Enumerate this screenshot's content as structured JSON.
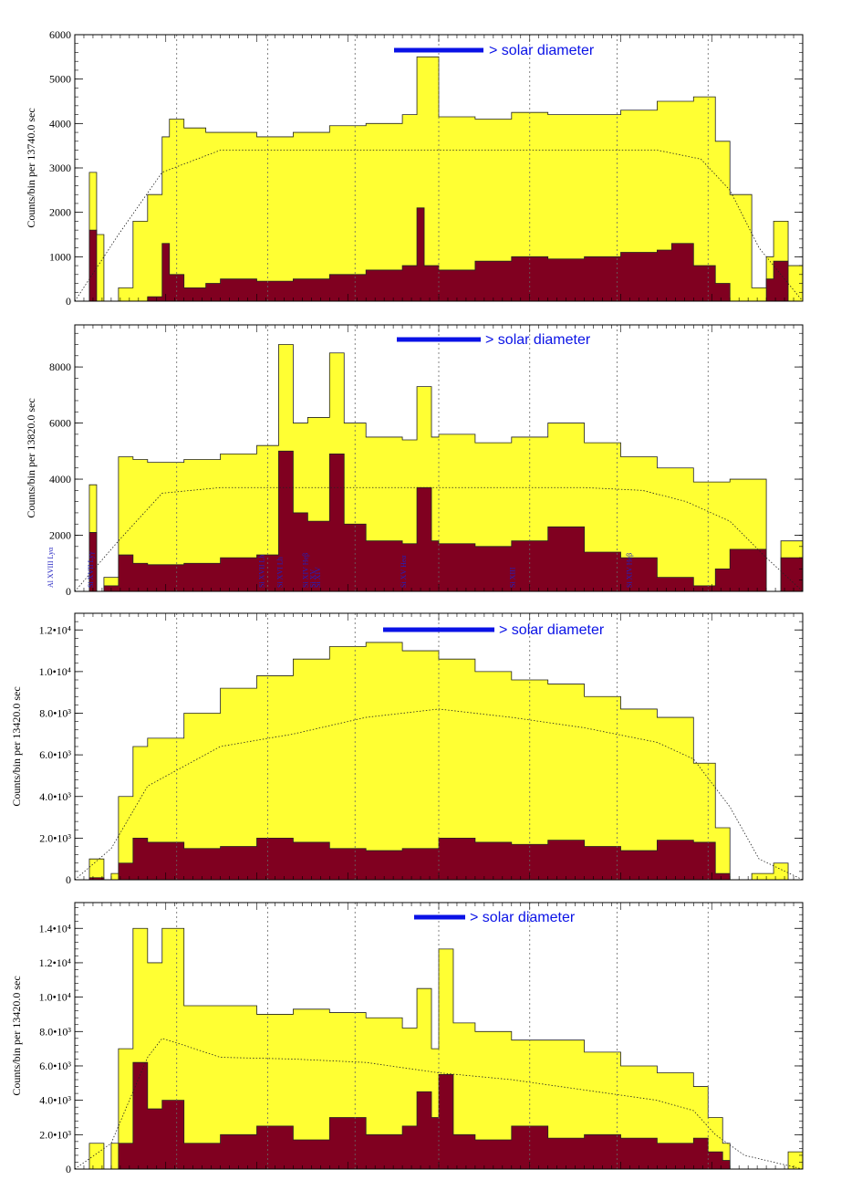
{
  "chart_data": [
    {
      "type": "area",
      "ylabel": "Counts/bin per  13740.0 sec",
      "ylim": [
        0,
        6000
      ],
      "yticks": [
        0,
        1000,
        2000,
        3000,
        4000,
        5000,
        6000
      ],
      "ytick_labels": [
        "0",
        "1000",
        "2000",
        "3000",
        "4000",
        "5000",
        "6000"
      ],
      "annotation": "> solar diameter",
      "series": [
        {
          "color": "#ffff33",
          "x": [
            0,
            0.02,
            0.03,
            0.04,
            0.06,
            0.08,
            0.1,
            0.12,
            0.13,
            0.15,
            0.18,
            0.2,
            0.25,
            0.3,
            0.35,
            0.4,
            0.45,
            0.47,
            0.5,
            0.55,
            0.6,
            0.65,
            0.7,
            0.75,
            0.8,
            0.85,
            0.88,
            0.9,
            0.93,
            0.95,
            0.96,
            0.98,
            1
          ],
          "values": [
            0,
            2900,
            1500,
            0,
            300,
            1800,
            2400,
            3700,
            4100,
            3900,
            3800,
            3800,
            3700,
            3800,
            3950,
            4000,
            4200,
            5500,
            4150,
            4100,
            4250,
            4200,
            4200,
            4300,
            4500,
            4600,
            3600,
            2400,
            300,
            1000,
            1800,
            800,
            0
          ]
        },
        {
          "color": "#800020",
          "x": [
            0,
            0.02,
            0.03,
            0.04,
            0.06,
            0.08,
            0.1,
            0.12,
            0.13,
            0.15,
            0.18,
            0.2,
            0.25,
            0.3,
            0.35,
            0.4,
            0.45,
            0.47,
            0.48,
            0.5,
            0.55,
            0.6,
            0.65,
            0.7,
            0.75,
            0.8,
            0.82,
            0.85,
            0.88,
            0.9,
            0.93,
            0.95,
            0.96,
            0.98,
            1
          ],
          "values": [
            0,
            1600,
            0,
            0,
            0,
            0,
            100,
            1300,
            600,
            300,
            400,
            500,
            450,
            500,
            600,
            700,
            800,
            2100,
            800,
            700,
            900,
            1000,
            950,
            1000,
            1100,
            1150,
            1300,
            800,
            400,
            0,
            0,
            500,
            900,
            0,
            0
          ]
        }
      ],
      "dotted_curve": {
        "x": [
          0,
          0.06,
          0.12,
          0.2,
          0.3,
          0.4,
          0.5,
          0.6,
          0.7,
          0.8,
          0.86,
          0.9,
          0.94,
          1
        ],
        "values": [
          0,
          1500,
          2900,
          3400,
          3400,
          3400,
          3400,
          3400,
          3400,
          3400,
          3200,
          2500,
          1200,
          0
        ]
      }
    },
    {
      "type": "area",
      "ylabel": "Counts/bin per  13820.0 sec",
      "ylim": [
        0,
        9500
      ],
      "yticks": [
        0,
        2000,
        4000,
        6000,
        8000
      ],
      "ytick_labels": [
        "0",
        "2000",
        "4000",
        "6000",
        "8000"
      ],
      "annotation": "> solar diameter",
      "line_labels": [
        "Al XVIII Lyα",
        "Si XVII Lyγ",
        "Si XVII Lh",
        "Si XVI Lh",
        "Si XIV Heβ",
        "Si XV",
        "Si XIV",
        "Si XV Heα",
        "Si XIII",
        "Si XIV Heβ"
      ],
      "series": [
        {
          "color": "#ffff33",
          "x": [
            0,
            0.02,
            0.03,
            0.04,
            0.06,
            0.08,
            0.1,
            0.15,
            0.2,
            0.25,
            0.28,
            0.3,
            0.32,
            0.35,
            0.37,
            0.4,
            0.45,
            0.47,
            0.49,
            0.5,
            0.55,
            0.6,
            0.65,
            0.7,
            0.75,
            0.8,
            0.85,
            0.88,
            0.9,
            0.95,
            0.97,
            1
          ],
          "values": [
            0,
            3800,
            0,
            500,
            4800,
            4700,
            4600,
            4700,
            4900,
            5200,
            8800,
            6000,
            6200,
            8500,
            6000,
            5500,
            5400,
            7300,
            5500,
            5600,
            5300,
            5500,
            6000,
            5300,
            4800,
            4400,
            3900,
            3900,
            4000,
            0,
            1800,
            0
          ]
        },
        {
          "color": "#800020",
          "x": [
            0,
            0.02,
            0.03,
            0.04,
            0.06,
            0.08,
            0.1,
            0.15,
            0.2,
            0.25,
            0.28,
            0.3,
            0.32,
            0.35,
            0.37,
            0.4,
            0.45,
            0.47,
            0.49,
            0.5,
            0.55,
            0.6,
            0.65,
            0.7,
            0.75,
            0.8,
            0.85,
            0.88,
            0.9,
            0.95,
            0.97,
            1
          ],
          "values": [
            0,
            2100,
            0,
            200,
            1300,
            1000,
            950,
            1000,
            1200,
            1300,
            5000,
            2800,
            2500,
            4900,
            2400,
            1800,
            1700,
            3700,
            1800,
            1700,
            1600,
            1800,
            2300,
            1400,
            1200,
            500,
            200,
            800,
            1500,
            0,
            1200,
            0
          ]
        }
      ],
      "dotted_curve": {
        "x": [
          0,
          0.06,
          0.12,
          0.2,
          0.3,
          0.4,
          0.5,
          0.6,
          0.7,
          0.78,
          0.84,
          0.9,
          0.95,
          1
        ],
        "values": [
          0,
          1800,
          3500,
          3700,
          3700,
          3700,
          3700,
          3700,
          3700,
          3600,
          3200,
          2500,
          1200,
          0
        ]
      }
    },
    {
      "type": "area",
      "ylabel": "Counts/bin per  13420.0 sec",
      "ylim": [
        0,
        12800
      ],
      "yticks": [
        0,
        2000,
        4000,
        6000,
        8000,
        10000,
        12000
      ],
      "ytick_labels": [
        "0",
        "2.0•10³",
        "4.0•10³",
        "6.0•10³",
        "8.0•10³",
        "1.0•10⁴",
        "1.2•10⁴"
      ],
      "annotation": "> solar diameter",
      "series": [
        {
          "color": "#ffff33",
          "x": [
            0,
            0.02,
            0.04,
            0.05,
            0.06,
            0.08,
            0.1,
            0.15,
            0.2,
            0.25,
            0.3,
            0.35,
            0.4,
            0.45,
            0.5,
            0.55,
            0.6,
            0.65,
            0.7,
            0.75,
            0.8,
            0.85,
            0.88,
            0.9,
            0.93,
            0.96,
            0.98,
            1
          ],
          "values": [
            0,
            1000,
            0,
            300,
            4000,
            6400,
            6800,
            8000,
            9200,
            9800,
            10600,
            11200,
            11400,
            11000,
            10600,
            10000,
            9600,
            9400,
            8800,
            8200,
            7800,
            5600,
            2500,
            0,
            300,
            800,
            0,
            0
          ]
        },
        {
          "color": "#800020",
          "x": [
            0,
            0.02,
            0.04,
            0.05,
            0.06,
            0.08,
            0.1,
            0.15,
            0.2,
            0.25,
            0.3,
            0.35,
            0.4,
            0.45,
            0.5,
            0.55,
            0.6,
            0.65,
            0.7,
            0.75,
            0.8,
            0.85,
            0.88,
            0.9,
            1
          ],
          "values": [
            0,
            100,
            0,
            0,
            800,
            2000,
            1800,
            1500,
            1600,
            2000,
            1800,
            1500,
            1400,
            1500,
            2000,
            1800,
            1700,
            1900,
            1600,
            1400,
            1900,
            1800,
            300,
            0,
            0
          ]
        }
      ],
      "dotted_curve": {
        "x": [
          0,
          0.05,
          0.1,
          0.2,
          0.3,
          0.4,
          0.5,
          0.6,
          0.7,
          0.8,
          0.85,
          0.9,
          0.94,
          1
        ],
        "values": [
          0,
          1500,
          4500,
          6400,
          7000,
          7800,
          8200,
          7800,
          7300,
          6600,
          5800,
          3500,
          1000,
          0
        ]
      }
    },
    {
      "type": "area",
      "ylabel": "Counts/bin per  13420.0 sec",
      "ylim": [
        0,
        15500
      ],
      "yticks": [
        0,
        2000,
        4000,
        6000,
        8000,
        10000,
        12000,
        14000
      ],
      "ytick_labels": [
        "0",
        "2.0•10³",
        "4.0•10³",
        "6.0•10³",
        "8.0•10³",
        "1.0•10⁴",
        "1.2•10⁴",
        "1.4•10⁴"
      ],
      "annotation": "> solar diameter",
      "series": [
        {
          "color": "#ffff33",
          "x": [
            0,
            0.02,
            0.04,
            0.05,
            0.06,
            0.08,
            0.1,
            0.12,
            0.15,
            0.2,
            0.25,
            0.3,
            0.35,
            0.4,
            0.45,
            0.47,
            0.49,
            0.5,
            0.52,
            0.55,
            0.6,
            0.65,
            0.7,
            0.75,
            0.8,
            0.85,
            0.87,
            0.89,
            0.9,
            0.95,
            0.98,
            1
          ],
          "values": [
            0,
            1500,
            0,
            1500,
            7000,
            14000,
            12000,
            14000,
            9500,
            9500,
            9000,
            9300,
            9100,
            8800,
            8200,
            10500,
            7000,
            12800,
            8500,
            8000,
            7500,
            7500,
            6800,
            6000,
            5600,
            4800,
            3000,
            1500,
            0,
            0,
            1000,
            0
          ]
        },
        {
          "color": "#800020",
          "x": [
            0,
            0.02,
            0.04,
            0.05,
            0.06,
            0.08,
            0.1,
            0.12,
            0.15,
            0.2,
            0.25,
            0.3,
            0.35,
            0.4,
            0.45,
            0.47,
            0.49,
            0.5,
            0.52,
            0.55,
            0.6,
            0.65,
            0.7,
            0.75,
            0.8,
            0.85,
            0.87,
            0.89,
            0.9,
            1
          ],
          "values": [
            0,
            0,
            0,
            0,
            1500,
            6200,
            3500,
            4000,
            1500,
            2000,
            2500,
            1700,
            3000,
            2000,
            2500,
            4500,
            3000,
            5500,
            2000,
            1700,
            2500,
            1800,
            2000,
            1800,
            1500,
            1800,
            1000,
            500,
            0,
            0
          ]
        }
      ],
      "dotted_curve": {
        "x": [
          0,
          0.05,
          0.1,
          0.12,
          0.15,
          0.2,
          0.3,
          0.4,
          0.5,
          0.6,
          0.7,
          0.8,
          0.85,
          0.88,
          0.92,
          1
        ],
        "values": [
          0,
          1500,
          6500,
          7600,
          7200,
          6500,
          6400,
          6200,
          5600,
          5200,
          4600,
          4000,
          3400,
          2000,
          800,
          0
        ]
      }
    }
  ]
}
